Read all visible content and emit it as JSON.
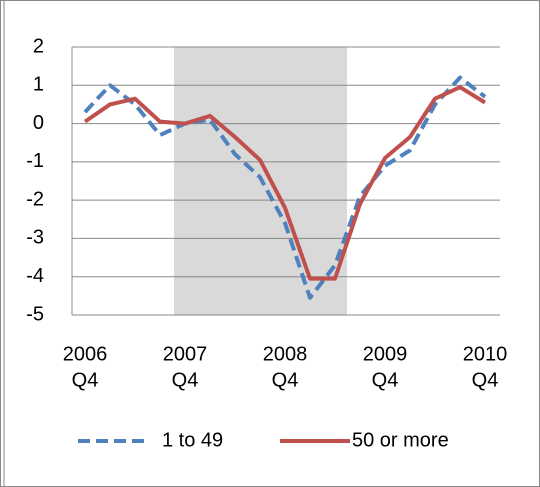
{
  "chart_data": {
    "type": "line",
    "categories": [
      [
        "2006",
        "Q4"
      ],
      null,
      null,
      null,
      [
        "2007",
        "Q4"
      ],
      null,
      null,
      null,
      [
        "2008",
        "Q4"
      ],
      null,
      null,
      null,
      [
        "2009",
        "Q4"
      ],
      null,
      null,
      null,
      [
        "2010",
        "Q4"
      ]
    ],
    "series": [
      {
        "name": "1 to 49",
        "color": "#4f81bd",
        "dash": true,
        "values": [
          0.3,
          1.0,
          0.5,
          -0.3,
          0.0,
          0.1,
          -0.8,
          -1.4,
          -2.6,
          -4.55,
          -3.7,
          -1.9,
          -1.1,
          -0.7,
          0.5,
          1.2,
          0.7
        ]
      },
      {
        "name": "50 or more",
        "color": "#c0504d",
        "dash": false,
        "values": [
          0.05,
          0.5,
          0.65,
          0.05,
          0.0,
          0.2,
          -0.35,
          -0.95,
          -2.2,
          -4.05,
          -4.05,
          -2.1,
          -0.9,
          -0.35,
          0.65,
          0.95,
          0.55
        ]
      }
    ],
    "highlight_range": {
      "from": 3.56,
      "to": 10.48,
      "color": "#d9d9d9"
    },
    "ylim": [
      -5,
      2
    ],
    "yticks": [
      -5,
      -4,
      -3,
      -2,
      -1,
      0,
      1,
      2
    ],
    "grid": true,
    "legend": "bottom"
  }
}
